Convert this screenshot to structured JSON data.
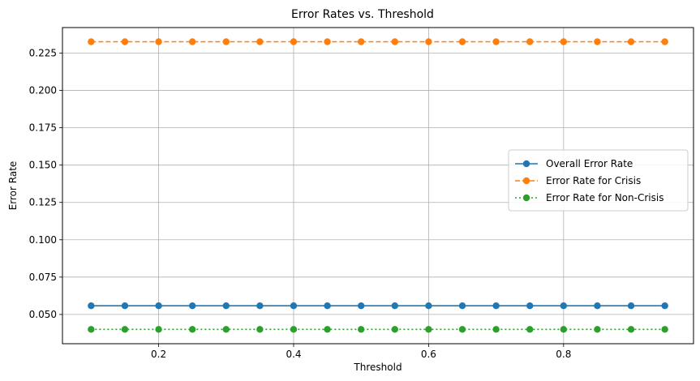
{
  "chart_data": {
    "type": "line",
    "title": "Error Rates vs. Threshold",
    "xlabel": "Threshold",
    "ylabel": "Error Rate",
    "x": [
      0.1,
      0.15,
      0.2,
      0.25,
      0.3,
      0.35,
      0.4,
      0.45,
      0.5,
      0.55,
      0.6,
      0.65,
      0.7,
      0.75,
      0.8,
      0.85,
      0.9,
      0.95
    ],
    "xlim": [
      0.0575,
      0.9925
    ],
    "ylim": [
      0.0304,
      0.2421
    ],
    "xticks": [
      0.2,
      0.4,
      0.6,
      0.8
    ],
    "xtick_labels": [
      "0.2",
      "0.4",
      "0.6",
      "0.8"
    ],
    "yticks": [
      0.05,
      0.075,
      0.1,
      0.125,
      0.15,
      0.175,
      0.2,
      0.225
    ],
    "ytick_labels": [
      "0.050",
      "0.075",
      "0.100",
      "0.125",
      "0.150",
      "0.175",
      "0.200",
      "0.225"
    ],
    "grid": true,
    "legend_position": "center-right",
    "series": [
      {
        "name": "Overall Error Rate",
        "color": "#1f77b4",
        "linestyle": "solid",
        "marker": "circle",
        "values": [
          0.0558,
          0.0558,
          0.0558,
          0.0558,
          0.0558,
          0.0558,
          0.0558,
          0.0558,
          0.0558,
          0.0558,
          0.0558,
          0.0558,
          0.0558,
          0.0558,
          0.0558,
          0.0558,
          0.0558,
          0.0558
        ]
      },
      {
        "name": "Error Rate for Crisis",
        "color": "#ff7f0e",
        "linestyle": "dashed",
        "marker": "circle",
        "values": [
          0.2326,
          0.2326,
          0.2326,
          0.2326,
          0.2326,
          0.2326,
          0.2326,
          0.2326,
          0.2326,
          0.2326,
          0.2326,
          0.2326,
          0.2326,
          0.2326,
          0.2326,
          0.2326,
          0.2326,
          0.2326
        ]
      },
      {
        "name": "Error Rate for Non-Crisis",
        "color": "#2ca02c",
        "linestyle": "dotted",
        "marker": "circle",
        "values": [
          0.04,
          0.04,
          0.04,
          0.04,
          0.04,
          0.04,
          0.04,
          0.04,
          0.04,
          0.04,
          0.04,
          0.04,
          0.04,
          0.04,
          0.04,
          0.04,
          0.04,
          0.04
        ]
      }
    ]
  }
}
